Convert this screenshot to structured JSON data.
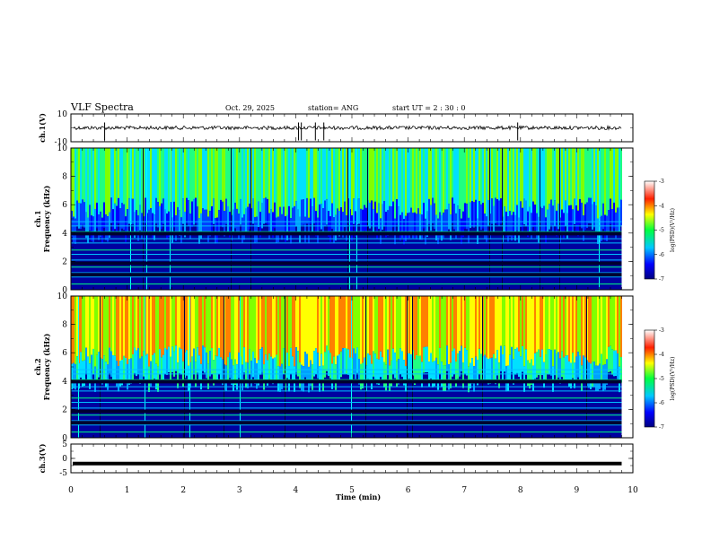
{
  "header": {
    "title": "VLF Spectra",
    "date": "Oct. 29, 2025",
    "station": "station= ANG",
    "start": "start  UT  =   2  : 30 : 0"
  },
  "chart_data": [
    {
      "type": "line",
      "panel": "ch1-waveform",
      "ylabel": "ch.1(V)",
      "ylim": [
        -10,
        10
      ],
      "yticks": [
        "10",
        "-10"
      ],
      "baseline": 0,
      "spikes_min": [
        0.6,
        4.05,
        4.1,
        4.35,
        4.5,
        7.95
      ],
      "x_end": 9.8
    },
    {
      "type": "heatmap",
      "panel": "ch1-spectrogram",
      "ylabel": "ch.1\nFrequency (kHz)",
      "ylim": [
        0,
        10
      ],
      "yticks": [
        "0",
        "2",
        "4",
        "6",
        "8",
        "10"
      ],
      "x_end": 9.8,
      "colorbar": {
        "label": "log(PSD)(V²/Hz)",
        "range": [
          -7,
          -3
        ],
        "ticks": [
          "-3",
          "-4",
          "-5",
          "-6",
          "-7"
        ]
      }
    },
    {
      "type": "heatmap",
      "panel": "ch2-spectrogram",
      "ylabel": "ch.2\nFrequency (kHz)",
      "ylim": [
        0,
        10
      ],
      "yticks": [
        "0",
        "2",
        "4",
        "6",
        "8",
        "10"
      ],
      "x_end": 9.8,
      "colorbar": {
        "label": "log(PSD)(V²/Hz)",
        "range": [
          -7,
          -3
        ],
        "ticks": [
          "-3",
          "-4",
          "-5",
          "-6",
          "-7"
        ]
      }
    },
    {
      "type": "line",
      "panel": "ch3-waveform",
      "ylabel": "ch.3(V)",
      "ylim": [
        -5,
        5
      ],
      "yticks": [
        "5",
        "0",
        "-5"
      ],
      "baseline": -1.8,
      "x_end": 9.8
    }
  ],
  "xaxis": {
    "label": "Time  (min)",
    "range": [
      0,
      10
    ],
    "ticks": [
      "0",
      "1",
      "2",
      "3",
      "4",
      "5",
      "6",
      "7",
      "8",
      "9",
      "10"
    ]
  }
}
